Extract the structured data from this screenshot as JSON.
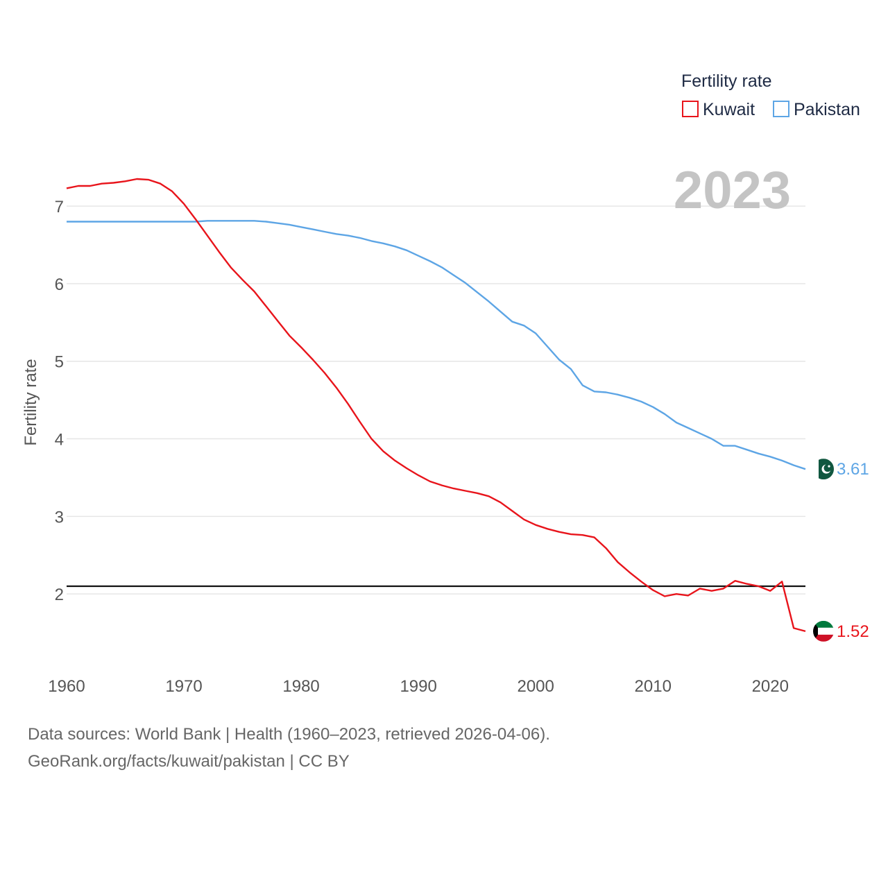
{
  "chart_data": {
    "type": "line",
    "title": "",
    "ylabel": "Fertility rate",
    "xlabel": "",
    "year_display": "2023",
    "xlim": [
      1960,
      2023
    ],
    "ylim": [
      1,
      7.6
    ],
    "x_ticks": [
      1960,
      1970,
      1980,
      1990,
      2000,
      2010,
      2020
    ],
    "y_ticks": [
      2,
      3,
      4,
      5,
      6,
      7
    ],
    "reference_line": 2.1,
    "legend": {
      "title": "Fertility rate",
      "position": "top-right"
    },
    "x": [
      1960,
      1961,
      1962,
      1963,
      1964,
      1965,
      1966,
      1967,
      1968,
      1969,
      1970,
      1971,
      1972,
      1973,
      1974,
      1975,
      1976,
      1977,
      1978,
      1979,
      1980,
      1981,
      1982,
      1983,
      1984,
      1985,
      1986,
      1987,
      1988,
      1989,
      1990,
      1991,
      1992,
      1993,
      1994,
      1995,
      1996,
      1997,
      1998,
      1999,
      2000,
      2001,
      2002,
      2003,
      2004,
      2005,
      2006,
      2007,
      2008,
      2009,
      2010,
      2011,
      2012,
      2013,
      2014,
      2015,
      2016,
      2017,
      2018,
      2019,
      2020,
      2021,
      2022,
      2023
    ],
    "series": [
      {
        "name": "Kuwait",
        "color": "#e8141b",
        "end_label": "1.52",
        "flag": "kuwait-flag",
        "values": [
          7.23,
          7.26,
          7.26,
          7.29,
          7.3,
          7.32,
          7.35,
          7.34,
          7.29,
          7.19,
          7.03,
          6.83,
          6.62,
          6.41,
          6.21,
          6.05,
          5.9,
          5.71,
          5.52,
          5.33,
          5.18,
          5.02,
          4.85,
          4.66,
          4.45,
          4.22,
          4.0,
          3.84,
          3.72,
          3.62,
          3.53,
          3.45,
          3.4,
          3.36,
          3.33,
          3.3,
          3.26,
          3.18,
          3.07,
          2.96,
          2.89,
          2.84,
          2.8,
          2.77,
          2.76,
          2.73,
          2.59,
          2.41,
          2.28,
          2.16,
          2.05,
          1.97,
          2.0,
          1.98,
          2.07,
          2.04,
          2.07,
          2.17,
          2.13,
          2.1,
          2.04,
          2.16,
          1.56,
          1.52
        ]
      },
      {
        "name": "Pakistan",
        "color": "#5da5e5",
        "end_label": "3.61",
        "flag": "pakistan-flag",
        "values": [
          6.8,
          6.8,
          6.8,
          6.8,
          6.8,
          6.8,
          6.8,
          6.8,
          6.8,
          6.8,
          6.8,
          6.8,
          6.81,
          6.81,
          6.81,
          6.81,
          6.81,
          6.8,
          6.78,
          6.76,
          6.73,
          6.7,
          6.67,
          6.64,
          6.62,
          6.59,
          6.55,
          6.52,
          6.48,
          6.43,
          6.36,
          6.29,
          6.21,
          6.11,
          6.01,
          5.89,
          5.77,
          5.64,
          5.51,
          5.46,
          5.36,
          5.19,
          5.02,
          4.9,
          4.69,
          4.61,
          4.6,
          4.57,
          4.53,
          4.48,
          4.41,
          4.32,
          4.21,
          4.14,
          4.07,
          4.0,
          3.91,
          3.91,
          3.86,
          3.81,
          3.77,
          3.72,
          3.66,
          3.61
        ]
      }
    ]
  },
  "footer": {
    "line1": "Data sources: World Bank | Health (1960–2023, retrieved 2026-04-06).",
    "line2": "GeoRank.org/facts/kuwait/pakistan | CC BY"
  }
}
